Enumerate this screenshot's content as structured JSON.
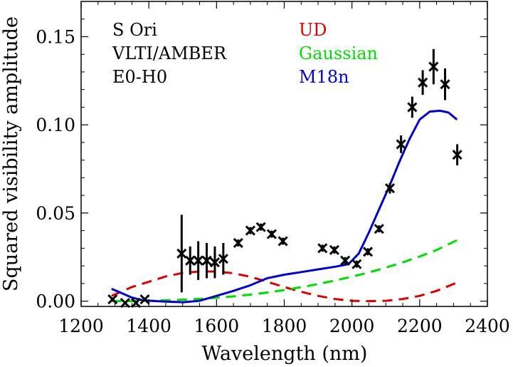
{
  "chart_data": {
    "type": "scatter",
    "title": "",
    "xlabel": "Wavelength (nm)",
    "ylabel": "Squared visibility amplitude",
    "xlim": [
      1200,
      2400
    ],
    "ylim": [
      -0.003,
      0.17
    ],
    "xticks": [
      1200,
      1400,
      1600,
      1800,
      2000,
      2200,
      2400
    ],
    "xtick_labels": [
      "1200",
      "1400",
      "1600",
      "1800",
      "2000",
      "2200",
      "2400"
    ],
    "yticks": [
      0.0,
      0.05,
      0.1,
      0.15
    ],
    "ytick_labels": [
      "0.00",
      "0.05",
      "0.10",
      "0.15"
    ],
    "annotations": [
      "S Ori",
      "VLTI/AMBER",
      "E0-H0"
    ],
    "legend": [
      {
        "name": "UD",
        "color": "#dd0000"
      },
      {
        "name": "Gaussian",
        "color": "#00dd00"
      },
      {
        "name": "M18n",
        "color": "#0000cc"
      }
    ],
    "observations": {
      "name": "VLTI/AMBER data",
      "marker": "x",
      "color": "#000000",
      "x": [
        1293,
        1330,
        1362,
        1388,
        1497,
        1522,
        1546,
        1571,
        1595,
        1620,
        1664,
        1700,
        1731,
        1763,
        1796,
        1913,
        1948,
        1980,
        2014,
        2047,
        2080,
        2112,
        2145,
        2178,
        2209,
        2241,
        2275,
        2311
      ],
      "y": [
        0.001,
        -0.001,
        -0.001,
        0.001,
        0.027,
        0.023,
        0.023,
        0.023,
        0.022,
        0.024,
        0.033,
        0.04,
        0.042,
        0.038,
        0.034,
        0.03,
        0.029,
        0.023,
        0.021,
        0.028,
        0.041,
        0.064,
        0.089,
        0.11,
        0.124,
        0.133,
        0.123,
        0.083
      ],
      "yerr": [
        0.001,
        0.001,
        0.001,
        0.001,
        0.022,
        0.008,
        0.011,
        0.01,
        0.009,
        0.009,
        0.002,
        0.002,
        0.002,
        0.002,
        0.002,
        0.002,
        0.002,
        0.002,
        0.002,
        0.002,
        0.002,
        0.003,
        0.005,
        0.006,
        0.007,
        0.01,
        0.009,
        0.006
      ]
    },
    "series": [
      {
        "name": "UD",
        "style": "dashed",
        "color": "#dd0000",
        "x": [
          1290,
          1350,
          1400,
          1450,
          1500,
          1550,
          1600,
          1650,
          1700,
          1750,
          1800,
          1850,
          1900,
          1950,
          2000,
          2050,
          2100,
          2150,
          2200,
          2250,
          2310
        ],
        "y": [
          0.003,
          0.008,
          0.011,
          0.014,
          0.016,
          0.0168,
          0.0168,
          0.0158,
          0.0138,
          0.011,
          0.008,
          0.0053,
          0.003,
          0.0012,
          0.0002,
          0.0,
          0.0002,
          0.0012,
          0.003,
          0.0058,
          0.0105
        ]
      },
      {
        "name": "Gaussian",
        "style": "dashed",
        "color": "#00dd00",
        "x": [
          1290,
          1350,
          1400,
          1450,
          1500,
          1550,
          1600,
          1650,
          1700,
          1750,
          1800,
          1850,
          1900,
          1950,
          2000,
          2050,
          2100,
          2150,
          2200,
          2250,
          2310
        ],
        "y": [
          0.0,
          0.0,
          0.0002,
          0.0005,
          0.0008,
          0.0013,
          0.0019,
          0.0027,
          0.0037,
          0.0049,
          0.0063,
          0.0079,
          0.0097,
          0.0117,
          0.0139,
          0.0163,
          0.019,
          0.022,
          0.0253,
          0.029,
          0.0345
        ]
      },
      {
        "name": "M18n",
        "style": "solid",
        "color": "#0000cc",
        "x": [
          1290,
          1320,
          1350,
          1380,
          1410,
          1450,
          1500,
          1550,
          1600,
          1650,
          1700,
          1750,
          1800,
          1850,
          1900,
          1950,
          1990,
          2020,
          2050,
          2080,
          2110,
          2140,
          2170,
          2200,
          2230,
          2260,
          2285,
          2310
        ],
        "y": [
          0.007,
          0.0045,
          0.002,
          0.0006,
          0.0001,
          -0.0003,
          -0.0006,
          0.0002,
          0.003,
          0.0058,
          0.009,
          0.013,
          0.015,
          0.0165,
          0.018,
          0.0195,
          0.021,
          0.027,
          0.039,
          0.052,
          0.065,
          0.079,
          0.092,
          0.103,
          0.1075,
          0.108,
          0.107,
          0.103
        ]
      }
    ]
  }
}
